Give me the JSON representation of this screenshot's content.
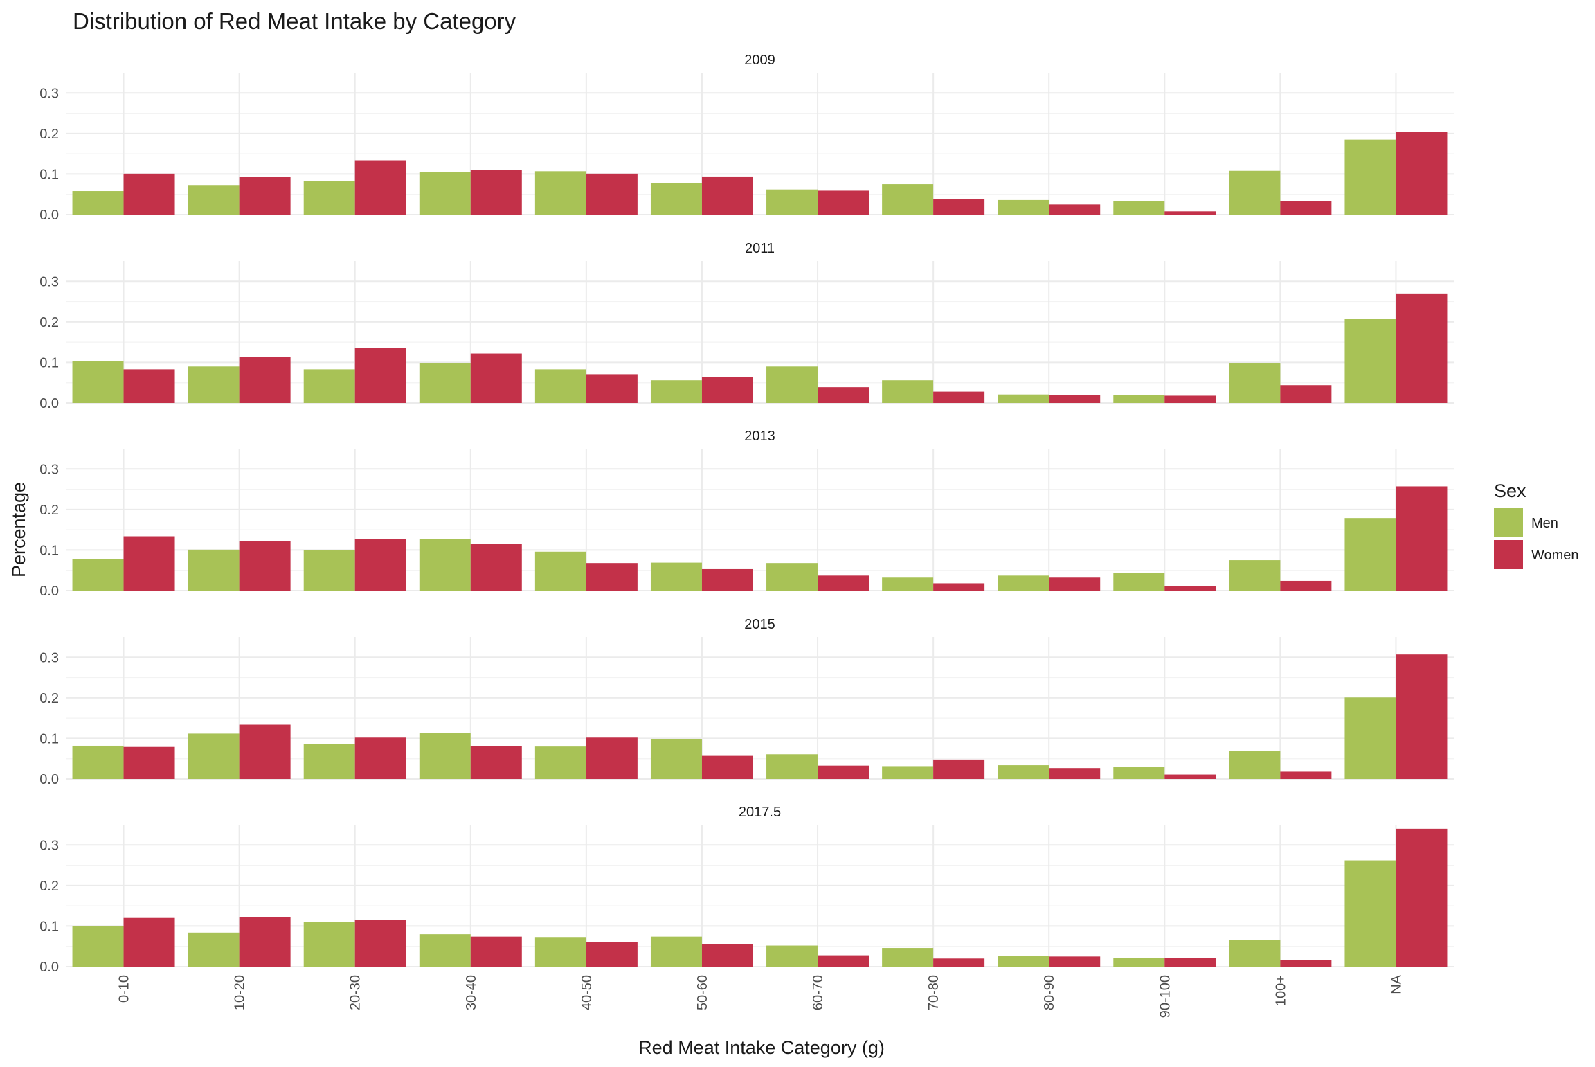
{
  "chart_data": {
    "type": "bar",
    "title": "Distribution of Red Meat Intake by Category",
    "xlabel": "Red Meat Intake Category (g)",
    "ylabel": "Percentage",
    "categories": [
      "0-10",
      "10-20",
      "20-30",
      "30-40",
      "40-50",
      "50-60",
      "60-70",
      "70-80",
      "80-90",
      "90-100",
      "100+",
      "NA"
    ],
    "yticks": [
      "0.0",
      "0.1",
      "0.2",
      "0.3"
    ],
    "ylim": [
      0,
      0.35
    ],
    "grid": true,
    "legend": {
      "title": "Sex",
      "position": "right",
      "entries": [
        {
          "name": "Men",
          "color": "#a8c256"
        },
        {
          "name": "Women",
          "color": "#c33149"
        }
      ]
    },
    "facets": [
      {
        "label": "2009",
        "series": [
          {
            "name": "Men",
            "values": [
              0.058,
              0.073,
              0.083,
              0.105,
              0.107,
              0.077,
              0.062,
              0.075,
              0.036,
              0.034,
              0.108,
              0.185
            ]
          },
          {
            "name": "Women",
            "values": [
              0.101,
              0.093,
              0.134,
              0.11,
              0.101,
              0.094,
              0.059,
              0.039,
              0.025,
              0.008,
              0.034,
              0.204
            ]
          }
        ]
      },
      {
        "label": "2011",
        "series": [
          {
            "name": "Men",
            "values": [
              0.104,
              0.09,
              0.083,
              0.099,
              0.083,
              0.056,
              0.09,
              0.056,
              0.021,
              0.019,
              0.099,
              0.207
            ]
          },
          {
            "name": "Women",
            "values": [
              0.083,
              0.113,
              0.136,
              0.122,
              0.071,
              0.064,
              0.039,
              0.028,
              0.019,
              0.018,
              0.044,
              0.27
            ]
          }
        ]
      },
      {
        "label": "2013",
        "series": [
          {
            "name": "Men",
            "values": [
              0.077,
              0.101,
              0.1,
              0.128,
              0.096,
              0.069,
              0.068,
              0.032,
              0.037,
              0.043,
              0.075,
              0.179
            ]
          },
          {
            "name": "Women",
            "values": [
              0.134,
              0.122,
              0.127,
              0.116,
              0.068,
              0.053,
              0.037,
              0.018,
              0.032,
              0.011,
              0.024,
              0.257
            ]
          }
        ]
      },
      {
        "label": "2015",
        "series": [
          {
            "name": "Men",
            "values": [
              0.082,
              0.112,
              0.086,
              0.113,
              0.08,
              0.098,
              0.061,
              0.03,
              0.034,
              0.029,
              0.069,
              0.201
            ]
          },
          {
            "name": "Women",
            "values": [
              0.079,
              0.134,
              0.102,
              0.081,
              0.102,
              0.057,
              0.033,
              0.048,
              0.027,
              0.011,
              0.018,
              0.307
            ]
          }
        ]
      },
      {
        "label": "2017.5",
        "series": [
          {
            "name": "Men",
            "values": [
              0.099,
              0.084,
              0.11,
              0.08,
              0.073,
              0.074,
              0.052,
              0.046,
              0.027,
              0.022,
              0.065,
              0.262
            ]
          },
          {
            "name": "Women",
            "values": [
              0.12,
              0.122,
              0.115,
              0.074,
              0.061,
              0.055,
              0.028,
              0.02,
              0.025,
              0.022,
              0.017,
              0.34
            ]
          }
        ]
      }
    ]
  }
}
